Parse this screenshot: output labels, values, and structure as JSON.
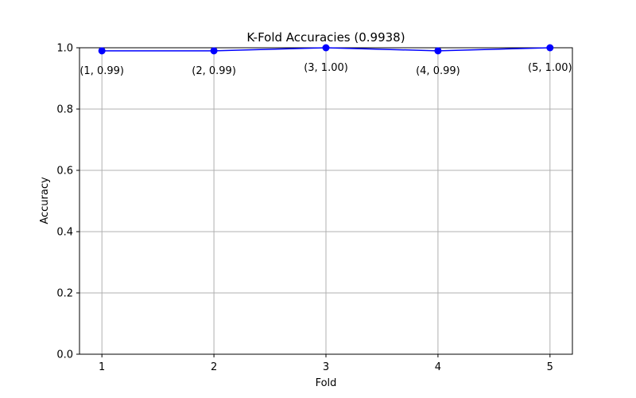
{
  "chart_data": {
    "type": "line",
    "title": "K-Fold Accuracies (0.9938)",
    "xlabel": "Fold",
    "ylabel": "Accuracy",
    "x": [
      1,
      2,
      3,
      4,
      5
    ],
    "series": [
      {
        "values": [
          0.99,
          0.99,
          1.0,
          0.99,
          1.0
        ]
      }
    ],
    "point_labels": [
      "(1, 0.99)",
      "(2, 0.99)",
      "(3, 1.00)",
      "(4, 0.99)",
      "(5, 1.00)"
    ],
    "xticks": [
      "1",
      "2",
      "3",
      "4",
      "5"
    ],
    "yticks": [
      "0.0",
      "0.2",
      "0.4",
      "0.6",
      "0.8",
      "1.0"
    ],
    "xlim": [
      0.8,
      5.2
    ],
    "ylim": [
      0.0,
      1.0
    ],
    "grid": true,
    "colors": {
      "line": "#0000ff",
      "marker": "#0000ff",
      "grid": "#b0b0b0"
    }
  }
}
